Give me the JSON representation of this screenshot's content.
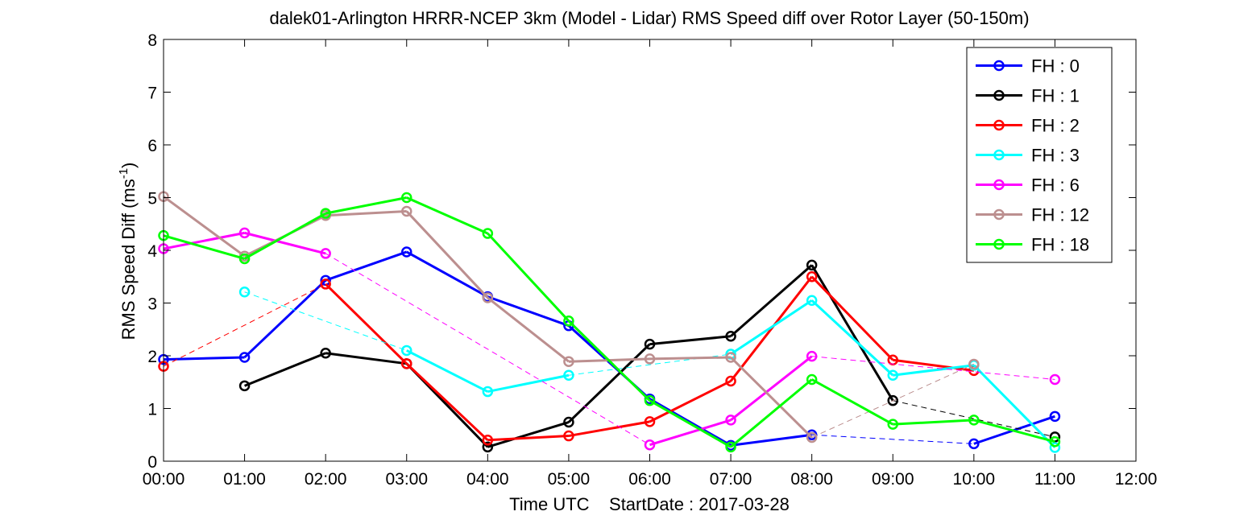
{
  "chart_data": {
    "type": "line",
    "title": "dalek01-Arlington HRRR-NCEP 3km (Model - Lidar) RMS Speed diff over Rotor Layer (50-150m)",
    "xlabel": "Time UTC    StartDate : 2017-03-28",
    "ylabel_main": "RMS Speed Diff (ms",
    "ylabel_sup": "-1",
    "ylabel_close": ")",
    "x_ticks": [
      "00:00",
      "01:00",
      "02:00",
      "03:00",
      "04:00",
      "05:00",
      "06:00",
      "07:00",
      "08:00",
      "09:00",
      "10:00",
      "11:00",
      "12:00"
    ],
    "y_ticks": [
      "0",
      "1",
      "2",
      "3",
      "4",
      "5",
      "6",
      "7",
      "8"
    ],
    "xlim": [
      0,
      12
    ],
    "ylim": [
      0,
      8
    ],
    "grid": false,
    "legend_position": "top-right",
    "series": [
      {
        "name": "FH : 0",
        "color": "#0000ff",
        "x": [
          0,
          1,
          2,
          3,
          4,
          5,
          6,
          7,
          8,
          10,
          11
        ],
        "y": [
          1.93,
          1.97,
          3.43,
          3.97,
          3.12,
          2.57,
          1.18,
          0.3,
          0.5,
          0.33,
          0.85
        ]
      },
      {
        "name": "FH : 1",
        "color": "#000000",
        "x": [
          1,
          2,
          3,
          4,
          5,
          6,
          7,
          8,
          9,
          11
        ],
        "y": [
          1.43,
          2.05,
          1.85,
          0.27,
          0.74,
          2.22,
          2.37,
          3.72,
          1.15,
          0.46
        ]
      },
      {
        "name": "FH : 2",
        "color": "#ff0000",
        "x": [
          0,
          2,
          3,
          4,
          5,
          6,
          7,
          8,
          9,
          10
        ],
        "y": [
          1.8,
          3.36,
          1.85,
          0.4,
          0.48,
          0.75,
          1.52,
          3.5,
          1.92,
          1.72
        ]
      },
      {
        "name": "FH : 3",
        "color": "#00ffff",
        "x": [
          1,
          3,
          4,
          5,
          7,
          8,
          9,
          10,
          11
        ],
        "y": [
          3.21,
          2.1,
          1.32,
          1.63,
          2.03,
          3.05,
          1.63,
          1.82,
          0.26
        ]
      },
      {
        "name": "FH : 6",
        "color": "#ff00ff",
        "x": [
          0,
          1,
          2,
          6,
          7,
          8,
          11
        ],
        "y": [
          4.03,
          4.33,
          3.94,
          0.31,
          0.78,
          1.99,
          1.55
        ]
      },
      {
        "name": "FH : 12",
        "color": "#bc8f8f",
        "x": [
          0,
          1,
          2,
          3,
          4,
          5,
          6,
          7,
          8,
          10
        ],
        "y": [
          5.02,
          3.89,
          4.66,
          4.74,
          3.1,
          1.89,
          1.94,
          1.97,
          0.45,
          1.84
        ]
      },
      {
        "name": "FH : 18",
        "color": "#00ff00",
        "x": [
          0,
          1,
          2,
          3,
          4,
          5,
          6,
          7,
          8,
          9,
          10,
          11
        ],
        "y": [
          4.28,
          3.84,
          4.7,
          5.0,
          4.32,
          2.66,
          1.15,
          0.27,
          1.55,
          0.7,
          0.78,
          0.37
        ]
      }
    ]
  }
}
